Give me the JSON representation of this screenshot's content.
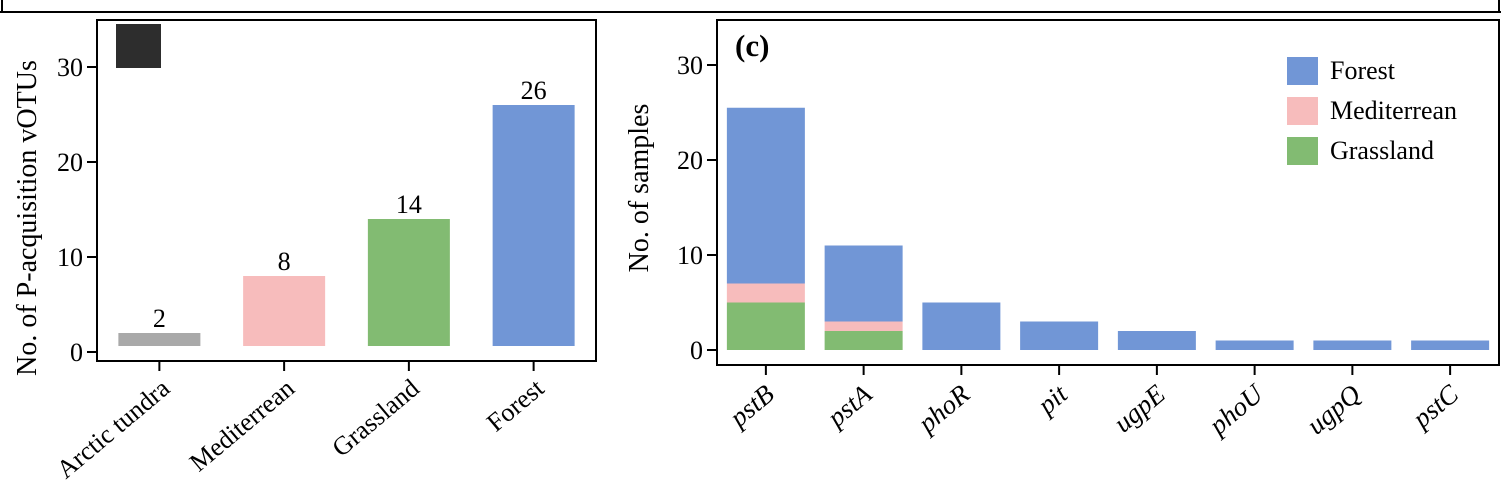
{
  "colors": {
    "Forest": "#7196d6",
    "Mediterrean": "#f7bcbc",
    "Grassland": "#82bb72",
    "Arctic tundra": "#a9a9a9",
    "frame": "#000000"
  },
  "chart_data": [
    {
      "type": "bar",
      "panel_label": "",
      "title": "",
      "xlabel": "",
      "ylabel": "No. of P-acquisition vOTUs",
      "ylim": [
        0,
        33
      ],
      "yticks": [
        0,
        10,
        20,
        30
      ],
      "grid": false,
      "categories": [
        "Arctic tundra",
        "Mediterrean",
        "Grassland",
        "Forest"
      ],
      "values": [
        2,
        8,
        14,
        26
      ],
      "data_labels": [
        "2",
        "8",
        "14",
        "26"
      ],
      "bar_colors": [
        "#a9a9a9",
        "#f7bcbc",
        "#82bb72",
        "#7196d6"
      ]
    },
    {
      "type": "bar",
      "stacked": true,
      "panel_label": "(c)",
      "title": "",
      "xlabel": "",
      "ylabel": "No. of samples",
      "ylim": [
        0,
        33
      ],
      "yticks": [
        0,
        10,
        20,
        30
      ],
      "grid": false,
      "legend_position": "top-right",
      "categories": [
        "pstB",
        "pstA",
        "phoR",
        "pit",
        "ugpE",
        "phoU",
        "ugpQ",
        "pstC"
      ],
      "series": [
        {
          "name": "Grassland",
          "values": [
            5,
            2,
            0,
            0,
            0,
            0,
            0,
            0
          ]
        },
        {
          "name": "Mediterrean",
          "values": [
            2,
            1,
            0,
            0,
            0,
            0,
            0,
            0
          ]
        },
        {
          "name": "Forest",
          "values": [
            18.5,
            8,
            5,
            3,
            2,
            1,
            1,
            1
          ]
        }
      ],
      "legend": [
        "Forest",
        "Mediterrean",
        "Grassland"
      ]
    }
  ]
}
